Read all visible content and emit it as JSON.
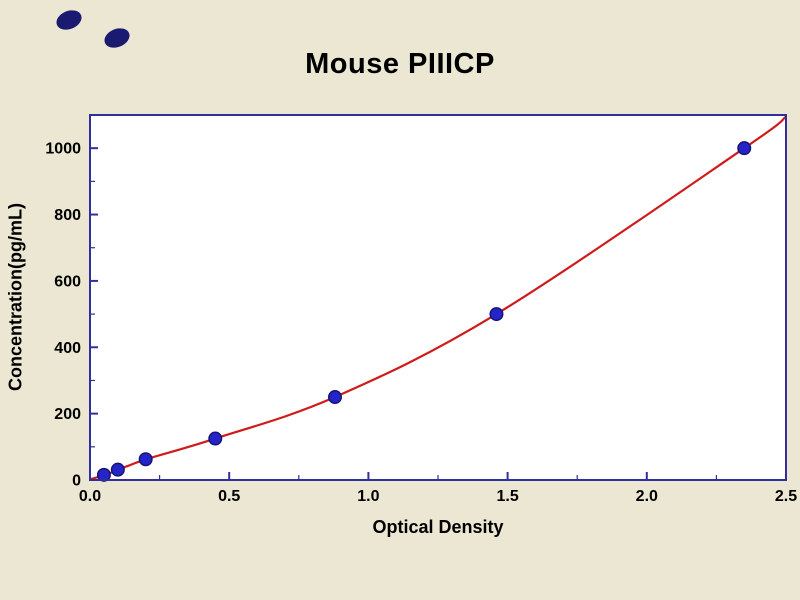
{
  "title": "Mouse PIIICP",
  "chart_data": {
    "type": "scatter",
    "title": "Mouse PIIICP",
    "xlabel": "Optical Density",
    "ylabel": "Concentration(pg/mL)",
    "xlim": [
      0,
      2.5
    ],
    "ylim": [
      0,
      1100
    ],
    "x_ticks": [
      0,
      0.5,
      1,
      1.5,
      2,
      2.5
    ],
    "x_tick_labels": [
      "0.0",
      "0.5",
      "1.0",
      "1.5",
      "2.0",
      "2.5"
    ],
    "y_ticks": [
      0,
      200,
      400,
      600,
      800,
      1000
    ],
    "y_tick_labels": [
      "0",
      "200",
      "400",
      "600",
      "800",
      "1000"
    ],
    "x_minor_step": 0.25,
    "y_minor_step": 100,
    "grid": false,
    "legend": "none",
    "series": [
      {
        "name": "standards",
        "x": [
          0.05,
          0.1,
          0.2,
          0.45,
          0.88,
          1.46,
          2.35
        ],
        "y": [
          15.6,
          31.2,
          62.5,
          125,
          250,
          500,
          1000
        ]
      }
    ],
    "fit_curve": {
      "x": [
        0,
        0.05,
        0.1,
        0.2,
        0.45,
        0.88,
        1.46,
        2.35,
        2.5
      ],
      "y": [
        2,
        14,
        30,
        62,
        125,
        250,
        500,
        1000,
        1095
      ]
    },
    "colors": {
      "background": "#ebe7d3",
      "plot_background": "#ffffff",
      "frame": "#30309c",
      "curve": "#cf1b1b",
      "point_fill": "#2424c8",
      "point_edge": "#13136e",
      "text": "#000000"
    }
  },
  "decor": {
    "corner_marks_color": "#1a1a70"
  }
}
